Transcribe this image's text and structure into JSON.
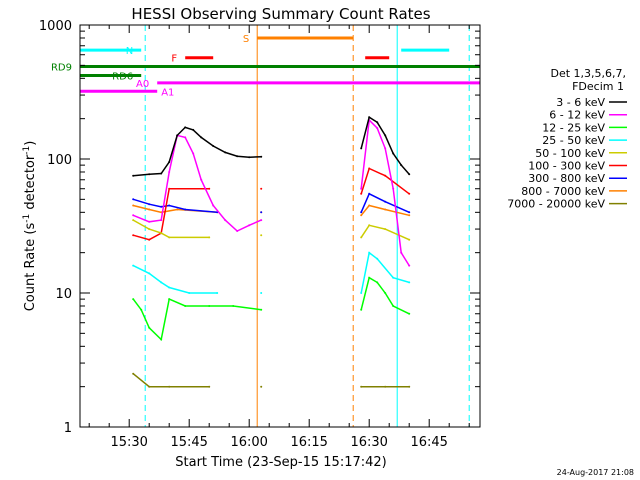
{
  "chart_data": {
    "type": "line",
    "title": "HESSI Observing Summary Count Rates",
    "xlabel": "Start Time (23-Sep-15 15:17:42)",
    "ylabel": "Count Rate (s",
    "ylabel_sup1": "-1",
    "ylabel_mid": " detector",
    "ylabel_sup2": "-1",
    "ylabel_end": ")",
    "y_scale": "log",
    "xlim": [
      "15:17:42",
      "16:57:42"
    ],
    "ylim": [
      1,
      1000
    ],
    "x_ticks": [
      "15:30",
      "15:45",
      "16:00",
      "16:15",
      "16:30",
      "16:45"
    ],
    "y_ticks": [
      {
        "value": 1,
        "label": "1"
      },
      {
        "value": 10,
        "label": "10"
      },
      {
        "value": 100,
        "label": "100"
      },
      {
        "value": 1000,
        "label": "1000"
      }
    ],
    "legend_position": "right",
    "legend_header": [
      "Det 1,3,5,6,7,",
      "FDecim 1"
    ],
    "date_stamp": "24-Aug-2017 21:08",
    "series": [
      {
        "name": "3 - 6 keV",
        "color": "#000000",
        "data": [
          [
            "15:31",
            75
          ],
          [
            "15:35",
            77
          ],
          [
            "15:38",
            78
          ],
          [
            "15:40",
            95
          ],
          [
            "15:42",
            150
          ],
          [
            "15:44",
            172
          ],
          [
            "15:46",
            165
          ],
          [
            "15:48",
            145
          ],
          [
            "15:51",
            125
          ],
          [
            "15:54",
            112
          ],
          [
            "15:57",
            105
          ],
          [
            "16:00",
            103
          ],
          [
            "16:03",
            104
          ],
          [
            "16:28",
            120
          ],
          [
            "16:30",
            205
          ],
          [
            "16:32",
            188
          ],
          [
            "16:34",
            150
          ],
          [
            "16:36",
            110
          ],
          [
            "16:38",
            90
          ],
          [
            "16:40",
            77
          ]
        ]
      },
      {
        "name": "6 - 12 keV",
        "color": "#ff00ff",
        "data": [
          [
            "15:31",
            38
          ],
          [
            "15:35",
            34
          ],
          [
            "15:38",
            35
          ],
          [
            "15:40",
            80
          ],
          [
            "15:42",
            150
          ],
          [
            "15:44",
            145
          ],
          [
            "15:46",
            110
          ],
          [
            "15:48",
            70
          ],
          [
            "15:51",
            45
          ],
          [
            "15:54",
            35
          ],
          [
            "15:57",
            29
          ],
          [
            "16:00",
            32
          ],
          [
            "16:03",
            35
          ],
          [
            "16:28",
            60
          ],
          [
            "16:30",
            195
          ],
          [
            "16:32",
            170
          ],
          [
            "16:34",
            120
          ],
          [
            "16:36",
            60
          ],
          [
            "16:38",
            20
          ],
          [
            "16:40",
            16
          ]
        ]
      },
      {
        "name": "12 - 25 keV",
        "color": "#00ff00",
        "data": [
          [
            "15:31",
            9
          ],
          [
            "15:33",
            7.5
          ],
          [
            "15:35",
            5.5
          ],
          [
            "15:38",
            4.5
          ],
          [
            "15:40",
            9
          ],
          [
            "15:44",
            8
          ],
          [
            "15:50",
            8
          ],
          [
            "15:56",
            8
          ],
          [
            "16:03",
            7.5
          ],
          [
            "16:28",
            7.5
          ],
          [
            "16:30",
            13
          ],
          [
            "16:32",
            12
          ],
          [
            "16:34",
            10
          ],
          [
            "16:36",
            8
          ],
          [
            "16:40",
            7
          ]
        ]
      },
      {
        "name": "25 - 50 keV",
        "color": "#00ffff",
        "data": [
          [
            "15:31",
            16
          ],
          [
            "15:35",
            14
          ],
          [
            "15:38",
            12
          ],
          [
            "15:40",
            11
          ],
          [
            "15:45",
            10
          ],
          [
            "15:52",
            10
          ],
          [
            "16:03",
            10
          ],
          [
            "16:28",
            10
          ],
          [
            "16:30",
            20
          ],
          [
            "16:32",
            18
          ],
          [
            "16:36",
            13
          ],
          [
            "16:40",
            12
          ]
        ]
      },
      {
        "name": "50 - 100 keV",
        "color": "#cccc00",
        "data": [
          [
            "15:31",
            35
          ],
          [
            "15:35",
            30
          ],
          [
            "15:38",
            28
          ],
          [
            "15:40",
            26
          ],
          [
            "15:50",
            26
          ],
          [
            "16:03",
            27
          ],
          [
            "16:28",
            26
          ],
          [
            "16:30",
            32
          ],
          [
            "16:34",
            30
          ],
          [
            "16:40",
            25
          ]
        ]
      },
      {
        "name": "100 - 300 keV",
        "color": "#ff0000",
        "data": [
          [
            "15:31",
            27
          ],
          [
            "15:35",
            25
          ],
          [
            "15:38",
            28
          ],
          [
            "15:40",
            60
          ],
          [
            "15:50",
            60
          ],
          [
            "16:03",
            60
          ],
          [
            "16:28",
            55
          ],
          [
            "16:30",
            85
          ],
          [
            "16:34",
            75
          ],
          [
            "16:40",
            55
          ]
        ]
      },
      {
        "name": "300 - 800 keV",
        "color": "#0000ff",
        "data": [
          [
            "15:31",
            50
          ],
          [
            "15:35",
            46
          ],
          [
            "15:38",
            44
          ],
          [
            "15:40",
            45
          ],
          [
            "15:44",
            42
          ],
          [
            "15:52",
            40
          ],
          [
            "16:03",
            40
          ],
          [
            "16:28",
            40
          ],
          [
            "16:30",
            55
          ],
          [
            "16:34",
            48
          ],
          [
            "16:40",
            40
          ]
        ]
      },
      {
        "name": "800 - 7000 keV",
        "color": "#ff8000",
        "data": [
          [
            "15:31",
            45
          ],
          [
            "15:35",
            42
          ],
          [
            "15:38",
            40
          ],
          [
            "15:42",
            42
          ],
          [
            "15:52",
            40
          ],
          [
            "16:03",
            40
          ],
          [
            "16:28",
            38
          ],
          [
            "16:30",
            45
          ],
          [
            "16:34",
            42
          ],
          [
            "16:40",
            38
          ]
        ]
      },
      {
        "name": "7000 - 20000 keV",
        "color": "#808000",
        "data": [
          [
            "15:31",
            2.5
          ],
          [
            "15:35",
            2
          ],
          [
            "15:40",
            2
          ],
          [
            "15:50",
            2
          ],
          [
            "16:03",
            2
          ],
          [
            "16:28",
            2
          ],
          [
            "16:34",
            2
          ],
          [
            "16:40",
            2
          ]
        ]
      }
    ],
    "annotations": {
      "flags": [
        {
          "label": "N",
          "color": "#00ffff",
          "y": 650,
          "segments": [
            [
              "15:17:42",
              "15:33"
            ],
            [
              "16:38",
              "16:50"
            ]
          ]
        },
        {
          "label": "F",
          "color": "#ff0000",
          "y": 570,
          "segments": [
            [
              "15:44",
              "15:51"
            ],
            [
              "16:29",
              "16:35"
            ]
          ]
        },
        {
          "label": "RD9",
          "color": "#008000",
          "y": 490,
          "segments": [
            [
              "15:17:42",
              "16:57:42"
            ]
          ]
        },
        {
          "label": "RD6",
          "color": "#008000",
          "y": 420,
          "segments": [
            [
              "15:17:42",
              "15:33"
            ]
          ]
        },
        {
          "label": "A0",
          "color": "#ff00ff",
          "y": 370,
          "segments": [
            [
              "15:37",
              "16:57:42"
            ]
          ]
        },
        {
          "label": "A1",
          "color": "#ff00ff",
          "y": 320,
          "segments": [
            [
              "15:17:42",
              "15:37"
            ]
          ]
        },
        {
          "label": "S",
          "color": "#ff8000",
          "y": 800,
          "segments": [
            [
              "16:02",
              "16:26"
            ]
          ]
        }
      ],
      "vlines": [
        {
          "x": "15:17:42",
          "color": "#00ffff",
          "dash": false
        },
        {
          "x": "15:34",
          "color": "#00ffff",
          "dash": true
        },
        {
          "x": "16:02",
          "color": "#ff8000",
          "dash": false
        },
        {
          "x": "16:26",
          "color": "#ff8000",
          "dash": true
        },
        {
          "x": "16:37",
          "color": "#00ffff",
          "dash": false
        },
        {
          "x": "16:55",
          "color": "#00ffff",
          "dash": true
        }
      ]
    }
  }
}
